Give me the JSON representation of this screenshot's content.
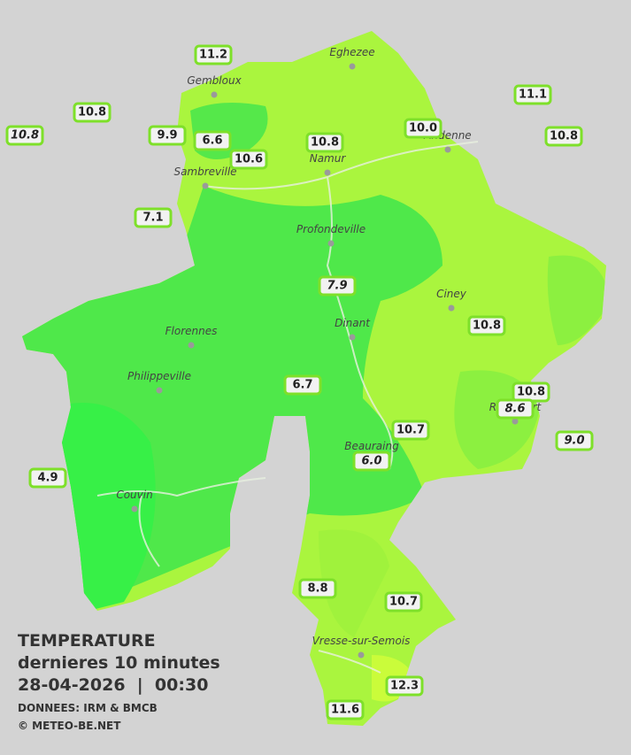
{
  "legend": {
    "title": "TEMPERATURE",
    "subtitle": "dernieres 10 minutes",
    "datetime": "28-04-2026  |  00:30",
    "source": "DONNEES: IRM & BMCB",
    "copyright": "© METEO-BE.NET"
  },
  "cities": [
    "Eghezee",
    "Gembloux",
    "Andenne",
    "Namur",
    "Sambreville",
    "Profondeville",
    "Ciney",
    "Dinant",
    "Florennes",
    "Philippeville",
    "Rochefort",
    "Beauraing",
    "Couvin",
    "Vresse-sur-Semois"
  ],
  "stations": [
    "11.2",
    "10.8",
    "10.8",
    "9.9",
    "6.6",
    "10.6",
    "10.8",
    "10.0",
    "11.1",
    "10.8",
    "7.1",
    "7.9",
    "10.8",
    "6.7",
    "10.8",
    "8.6",
    "10.7",
    "9.0",
    "6.0",
    "4.9",
    "8.8",
    "10.7",
    "12.3",
    "11.6"
  ]
}
